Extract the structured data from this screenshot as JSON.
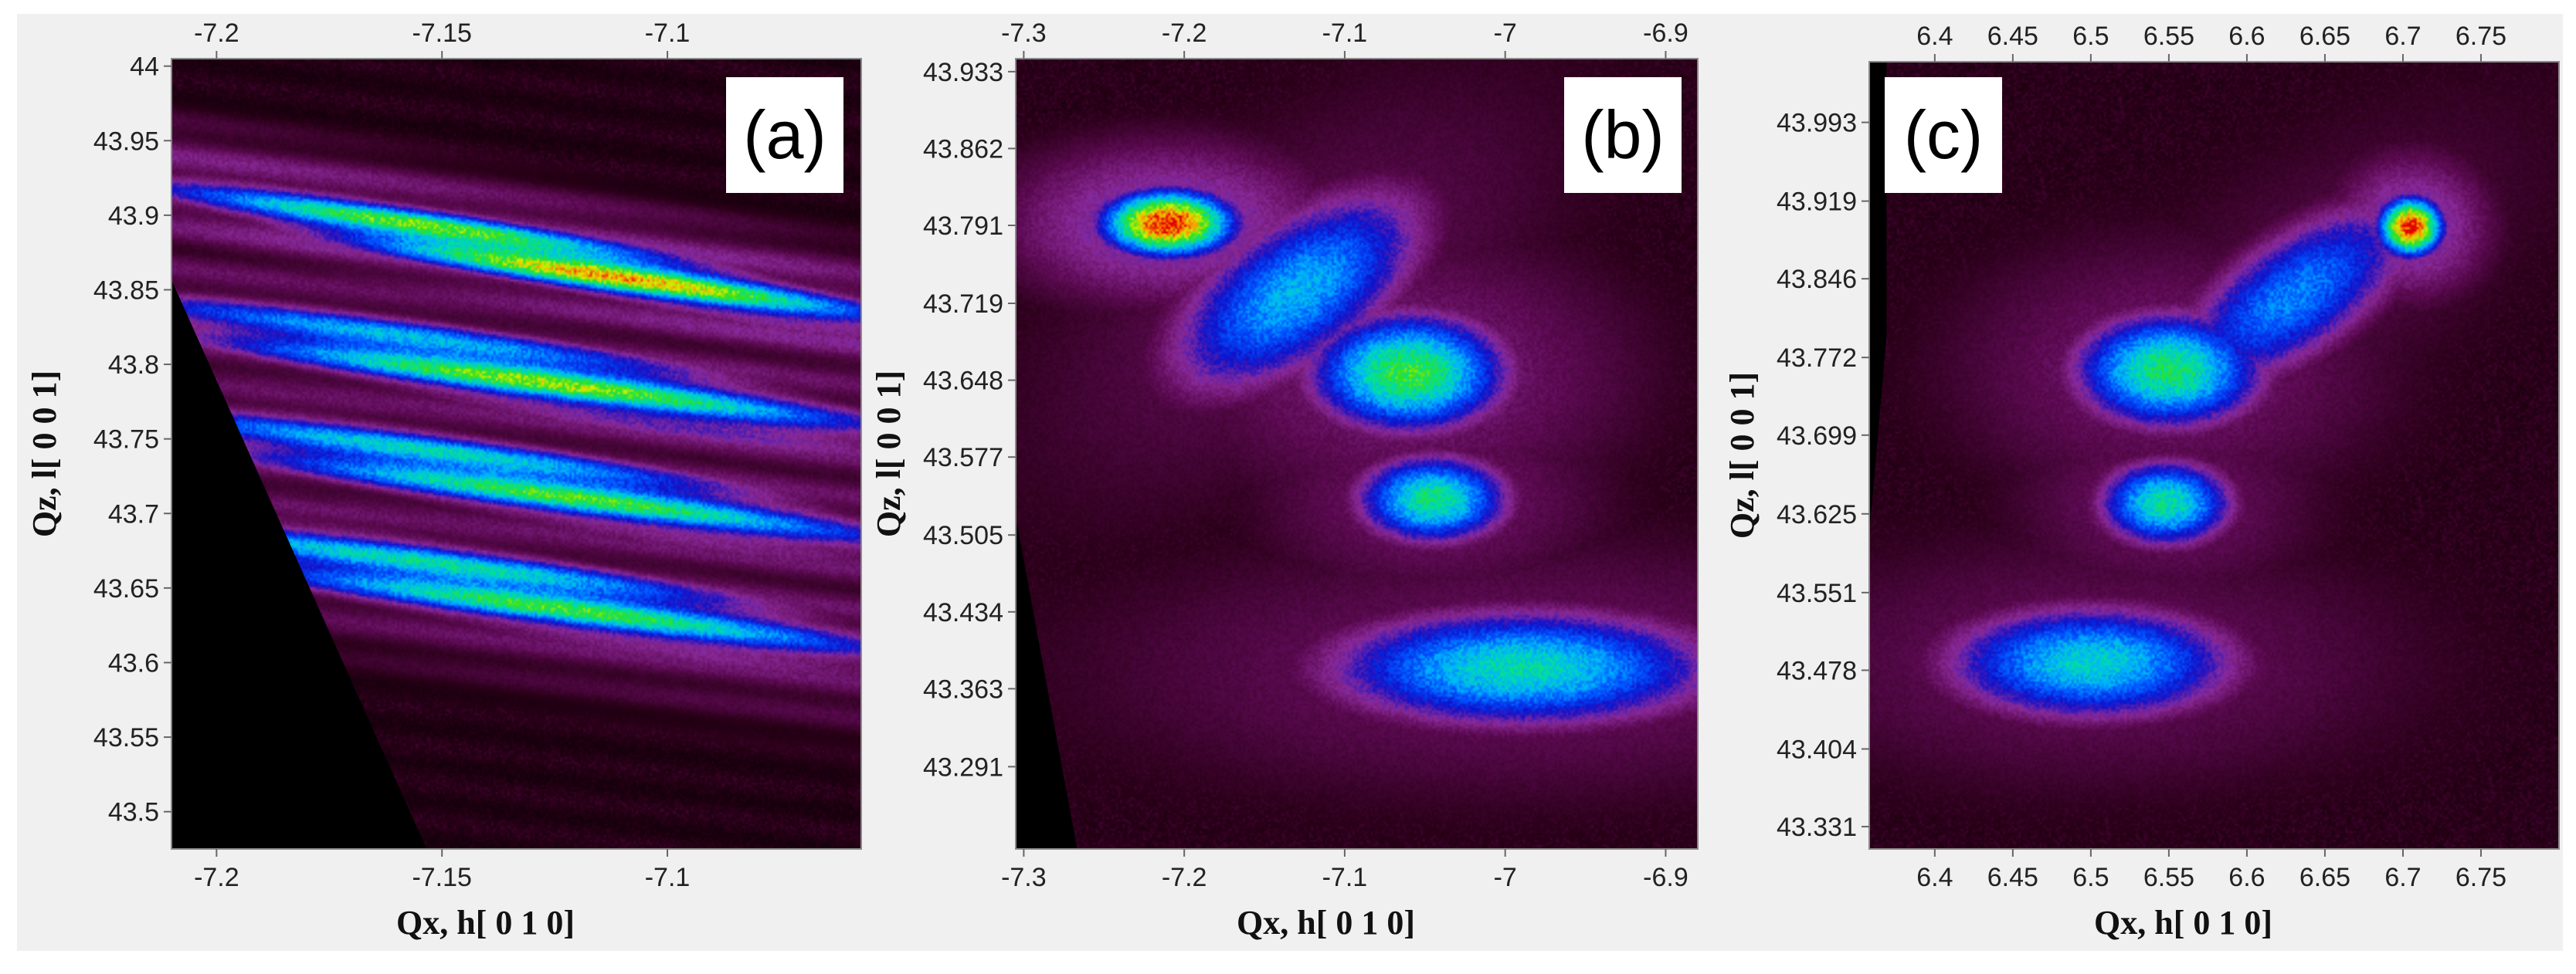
{
  "figure": {
    "background_color": "#ffffff",
    "panel_background": "#f0f0f0",
    "plot_background": "#000000",
    "colormap": [
      "#000000",
      "#2a0018",
      "#5c0a52",
      "#8a2a9a",
      "#1010c8",
      "#0050ff",
      "#00b4ff",
      "#00e0a0",
      "#30e020",
      "#d8f000",
      "#ff9000",
      "#e00000"
    ]
  },
  "chart_data": [
    {
      "type": "heatmap",
      "panel_label": "(a)",
      "xlabel": "Qx, h[ 0 1 0]",
      "ylabel": "Qz, l[ 0 0 1]",
      "xlim": [
        -7.21,
        -7.057
      ],
      "ylim": [
        43.475,
        44.005
      ],
      "x_ticks": [
        -7.2,
        -7.15,
        -7.1
      ],
      "x_tick_labels": [
        "-7.2",
        "-7.15",
        "-7.1"
      ],
      "y_ticks": [
        43.5,
        43.55,
        43.6,
        43.65,
        43.7,
        43.75,
        43.8,
        43.85,
        43.9,
        43.95,
        44.0
      ],
      "y_tick_labels": [
        "43.5",
        "43.55",
        "43.6",
        "43.65",
        "43.7",
        "43.75",
        "43.8",
        "43.85",
        "43.9",
        "43.95",
        "44"
      ],
      "intensity_features": [
        {
          "x": -7.128,
          "y": 43.872,
          "width_x": 0.058,
          "width_y": 0.013,
          "tilt": -0.19,
          "peak": 1.0
        },
        {
          "x": -7.134,
          "y": 43.795,
          "width_x": 0.062,
          "width_y": 0.017,
          "tilt": -0.17,
          "peak": 0.82
        },
        {
          "x": -7.132,
          "y": 43.722,
          "width_x": 0.062,
          "width_y": 0.017,
          "tilt": -0.17,
          "peak": 0.8
        },
        {
          "x": -7.134,
          "y": 43.648,
          "width_x": 0.062,
          "width_y": 0.018,
          "tilt": -0.17,
          "peak": 0.8
        }
      ]
    },
    {
      "type": "heatmap",
      "panel_label": "(b)",
      "xlabel": "Qx, h[ 0 1 0]",
      "ylabel": "Qz, l[ 0 0 1]",
      "xlim": [
        -7.305,
        -6.88
      ],
      "ylim": [
        43.215,
        43.945
      ],
      "x_ticks": [
        -7.3,
        -7.2,
        -7.1,
        -7.0,
        -6.9
      ],
      "x_tick_labels": [
        "-7.3",
        "-7.2",
        "-7.1",
        "-7",
        "-6.9"
      ],
      "y_ticks": [
        43.291,
        43.363,
        43.434,
        43.505,
        43.577,
        43.648,
        43.719,
        43.791,
        43.862,
        43.933
      ],
      "y_tick_labels": [
        "43.291",
        "43.363",
        "43.434",
        "43.505",
        "43.577",
        "43.648",
        "43.719",
        "43.791",
        "43.862",
        "43.933"
      ],
      "intensity_features": [
        {
          "x": -7.21,
          "y": 43.793,
          "width_x": 0.03,
          "width_y": 0.022,
          "tilt": 0.0,
          "peak": 1.0
        },
        {
          "x": -7.13,
          "y": 43.73,
          "width_x": 0.07,
          "width_y": 0.05,
          "tilt": 0.6,
          "peak": 0.55
        },
        {
          "x": -7.06,
          "y": 43.655,
          "width_x": 0.045,
          "width_y": 0.04,
          "tilt": 0.0,
          "peak": 0.72
        },
        {
          "x": -7.045,
          "y": 43.538,
          "width_x": 0.035,
          "width_y": 0.03,
          "tilt": 0.0,
          "peak": 0.66
        },
        {
          "x": -6.99,
          "y": 43.382,
          "width_x": 0.09,
          "width_y": 0.04,
          "tilt": 0.0,
          "peak": 0.62
        }
      ]
    },
    {
      "type": "heatmap",
      "panel_label": "(c)",
      "xlabel": "Qx, h[ 0 1 0]",
      "ylabel": "Qz, l[ 0 0 1]",
      "xlim": [
        6.358,
        6.8
      ],
      "ylim": [
        43.31,
        44.05
      ],
      "x_ticks": [
        6.4,
        6.45,
        6.5,
        6.55,
        6.6,
        6.65,
        6.7,
        6.75
      ],
      "x_tick_labels": [
        "6.4",
        "6.45",
        "6.5",
        "6.55",
        "6.6",
        "6.65",
        "6.7",
        "6.75"
      ],
      "y_ticks": [
        43.331,
        43.404,
        43.478,
        43.551,
        43.625,
        43.699,
        43.772,
        43.846,
        43.919,
        43.993
      ],
      "y_tick_labels": [
        "43.331",
        "43.404",
        "43.478",
        "43.551",
        "43.625",
        "43.699",
        "43.772",
        "43.846",
        "43.919",
        "43.993"
      ],
      "intensity_features": [
        {
          "x": 6.705,
          "y": 43.895,
          "width_x": 0.015,
          "width_y": 0.02,
          "tilt": 0.0,
          "peak": 1.0
        },
        {
          "x": 6.63,
          "y": 43.83,
          "width_x": 0.07,
          "width_y": 0.045,
          "tilt": 0.6,
          "peak": 0.5
        },
        {
          "x": 6.55,
          "y": 43.76,
          "width_x": 0.045,
          "width_y": 0.04,
          "tilt": 0.0,
          "peak": 0.68
        },
        {
          "x": 6.548,
          "y": 43.635,
          "width_x": 0.032,
          "width_y": 0.03,
          "tilt": 0.0,
          "peak": 0.64
        },
        {
          "x": 6.5,
          "y": 43.485,
          "width_x": 0.07,
          "width_y": 0.04,
          "tilt": 0.0,
          "peak": 0.6
        }
      ]
    }
  ]
}
